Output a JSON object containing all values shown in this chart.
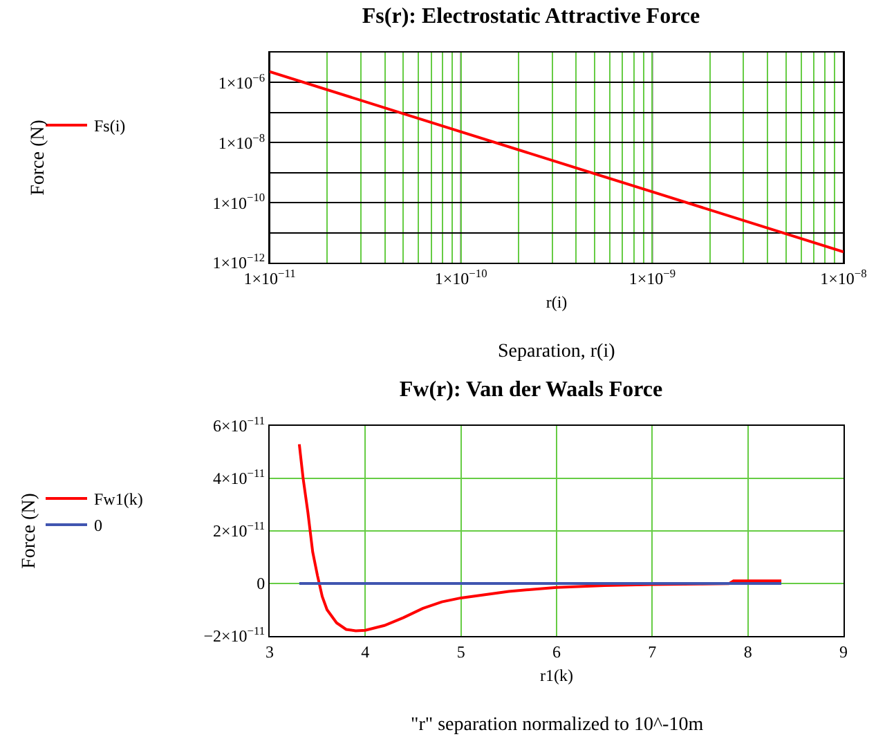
{
  "chart_data": [
    {
      "type": "line",
      "title": "Fs(r): Electrostatic Attractive Force",
      "xlabel": "r(i)",
      "ylabel": "Force (N)",
      "annotations": [
        "Separation, r(i)"
      ],
      "log": "xy",
      "grid": true,
      "legend": "left",
      "marker": "none",
      "line_style": "solid",
      "xlim": [
        1e-11,
        1e-08
      ],
      "ylim": [
        1e-12,
        1e-05
      ],
      "xticks": [
        {
          "value": 1e-11,
          "label": "1×10$^{−11}$"
        },
        {
          "value": 2e-11,
          "label": null
        },
        {
          "value": 3e-11,
          "label": null
        },
        {
          "value": 4e-11,
          "label": null
        },
        {
          "value": 5e-11,
          "label": null
        },
        {
          "value": 6e-11,
          "label": null
        },
        {
          "value": 7e-11,
          "label": null
        },
        {
          "value": 8e-11,
          "label": null
        },
        {
          "value": 9e-11,
          "label": null
        },
        {
          "value": 1e-10,
          "label": "1×10$^{−10}$"
        },
        {
          "value": 2e-10,
          "label": null
        },
        {
          "value": 3e-10,
          "label": null
        },
        {
          "value": 4e-10,
          "label": null
        },
        {
          "value": 5e-10,
          "label": null
        },
        {
          "value": 6e-10,
          "label": null
        },
        {
          "value": 7e-10,
          "label": null
        },
        {
          "value": 8e-10,
          "label": null
        },
        {
          "value": 9e-10,
          "label": null
        },
        {
          "value": 1e-09,
          "label": "1×10$^{−9}$"
        },
        {
          "value": 2e-09,
          "label": null
        },
        {
          "value": 3e-09,
          "label": null
        },
        {
          "value": 4e-09,
          "label": null
        },
        {
          "value": 5e-09,
          "label": null
        },
        {
          "value": 6e-09,
          "label": null
        },
        {
          "value": 7e-09,
          "label": null
        },
        {
          "value": 8e-09,
          "label": null
        },
        {
          "value": 9e-09,
          "label": null
        },
        {
          "value": 1e-08,
          "label": "1×10$^{−8}$"
        }
      ],
      "yticks": [
        {
          "value": 1e-12,
          "label": "1×10$^{−12}$"
        },
        {
          "value": 1e-11,
          "label": null
        },
        {
          "value": 1e-10,
          "label": "1×10$^{−10}$"
        },
        {
          "value": 1e-09,
          "label": null
        },
        {
          "value": 1e-08,
          "label": "1×10$^{−8}$"
        },
        {
          "value": 1e-07,
          "label": null
        },
        {
          "value": 1e-06,
          "label": "1×10$^{−6}$"
        }
      ],
      "series": [
        {
          "name": "Fs(i)",
          "color": "#ff0000",
          "x": [
            1e-11,
            1e-10,
            1e-09,
            1e-08
          ],
          "values": [
            2.3e-06,
            2.3e-08,
            2.3e-10,
            2.3e-12
          ]
        }
      ]
    },
    {
      "type": "line",
      "title": "Fw(r): Van der Waals Force",
      "xlabel": "r1(k)",
      "ylabel": "Force (N)",
      "annotations": [
        "\"r\" separation normalized to 10^-10m"
      ],
      "grid": true,
      "legend": "left",
      "marker": "none",
      "line_style": "solid",
      "xlim": [
        3,
        9
      ],
      "ylim": [
        -2e-11,
        6e-11
      ],
      "xticks": [
        3,
        4,
        5,
        6,
        7,
        8,
        9
      ],
      "yticks": [
        {
          "value": -2e-11,
          "label": "−2×10$^{−11}$"
        },
        0,
        {
          "value": 2e-11,
          "label": "2×10$^{−11}$"
        },
        {
          "value": 4e-11,
          "label": "4×10$^{−11}$"
        },
        {
          "value": 6e-11,
          "label": "6×10$^{−11}$"
        }
      ],
      "series": [
        {
          "name": "Fw1(k)",
          "color": "#ff0000",
          "x": [
            3.31,
            3.35,
            3.4,
            3.45,
            3.5,
            3.55,
            3.6,
            3.7,
            3.8,
            3.9,
            4.0,
            4.2,
            4.4,
            4.6,
            4.8,
            5.0,
            5.5,
            6.0,
            6.5,
            7.0,
            7.5,
            7.8,
            7.85,
            8.35
          ],
          "values": [
            5.3e-11,
            4e-11,
            2.7e-11,
            1.2e-11,
            3e-12,
            -5e-12,
            -1e-11,
            -1.5e-11,
            -1.75e-11,
            -1.8e-11,
            -1.78e-11,
            -1.6e-11,
            -1.3e-11,
            -9.5e-12,
            -7e-12,
            -5.5e-12,
            -3e-12,
            -1.5e-12,
            -8e-13,
            -4e-13,
            -2e-13,
            -1e-13,
            1e-12,
            1e-12
          ]
        },
        {
          "name": "0",
          "color": "#4055b0",
          "x": [
            3.31,
            8.35
          ],
          "values": [
            0,
            0
          ]
        }
      ]
    }
  ]
}
